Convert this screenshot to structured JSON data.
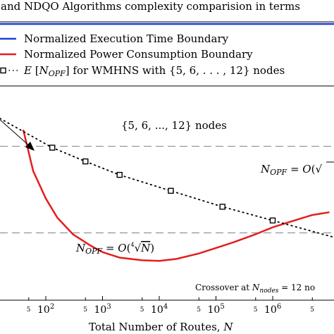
{
  "chart_data": {
    "type": "line",
    "title": "and NDQO Algorithms complexity comparision in terms",
    "xlabel": "Total Number of Routes, N",
    "x_scale": "log",
    "x_ticks": [
      "10^2",
      "10^3",
      "10^4",
      "10^5",
      "10^6"
    ],
    "x_minor_label": "5",
    "legend": {
      "placement": "top",
      "entries": [
        "Normalized Execution Time Boundary",
        "Normalized Power Consumption Boundary",
        "E [N_OPF] for WMHNS with {5, 6, ..., 12} nodes"
      ]
    },
    "colors": {
      "execution_time": "#1f3fd6",
      "power": "#e41e1e",
      "expected": "#000000",
      "reference": "#808080"
    },
    "annotations": {
      "arrow_label": "{5, 6, ..., 12} nodes",
      "upper_ref": "N_OPF = O(√",
      "lower_ref": "N_OPF = O(∜N)",
      "crossover": "Crossover at N_nodes = 12 no"
    },
    "series": [
      {
        "name": "Normalized Power Consumption Boundary",
        "x": [
          40,
          60,
          100,
          160,
          300,
          600,
          1000,
          2000,
          5000,
          10000,
          20000,
          50000,
          100000,
          200000,
          500000,
          1000000,
          2000000,
          5000000,
          10000000
        ],
        "y": [
          0.62,
          0.47,
          0.37,
          0.3,
          0.24,
          0.2,
          0.175,
          0.155,
          0.145,
          0.143,
          0.15,
          0.17,
          0.19,
          0.21,
          0.24,
          0.265,
          0.285,
          0.31,
          0.32
        ]
      },
      {
        "name": "E [N_OPF] for WMHNS with {5, 6, ..., 12} nodes",
        "x": [
          130,
          500,
          2000,
          16000,
          130000,
          1000000
        ],
        "y": [
          0.555,
          0.505,
          0.456,
          0.398,
          0.34,
          0.29
        ]
      }
    ],
    "reference_lines": [
      {
        "label": "N_OPF = O(√",
        "y": 0.56
      },
      {
        "label": "N_OPF = O(∜N)",
        "y": 0.245
      }
    ]
  }
}
